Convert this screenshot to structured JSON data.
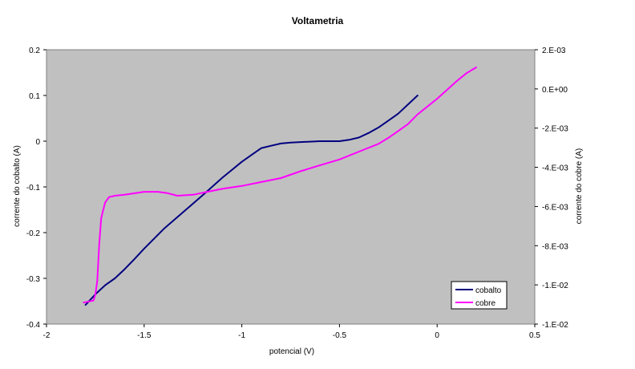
{
  "chart_data": {
    "type": "line",
    "title": "Voltametria",
    "xlabel": "potencial (V)",
    "ylabel_left": "corrente do cobalto (A)",
    "ylabel_right": "corrente do cobre (A)",
    "xlim": [
      -2,
      0.5
    ],
    "ylim_left": [
      -0.4,
      0.2
    ],
    "ylim_right": [
      -0.012,
      0.002
    ],
    "x_ticks": [
      "-2",
      "-1.5",
      "-1",
      "-0.5",
      "0",
      "0.5"
    ],
    "y_left_ticks": [
      "0.2",
      "0.1",
      "0",
      "-0.1",
      "-0.2",
      "-0.3",
      "-0.4"
    ],
    "y_right_ticks": [
      "2.E-03",
      "0.E+00",
      "-2.E-03",
      "-4.E-03",
      "-6.E-03",
      "-8.E-03",
      "-1.E-02",
      "-1.E-02"
    ],
    "plot_background": "#c0c0c0",
    "grid": false,
    "legend_position": "bottom-right",
    "series": [
      {
        "name": "cobalto",
        "axis": "left",
        "color": "#000080",
        "x": [
          -1.8,
          -1.75,
          -1.7,
          -1.65,
          -1.6,
          -1.55,
          -1.5,
          -1.4,
          -1.3,
          -1.2,
          -1.1,
          -1.0,
          -0.95,
          -0.9,
          -0.85,
          -0.8,
          -0.75,
          -0.7,
          -0.6,
          -0.5,
          -0.45,
          -0.4,
          -0.35,
          -0.3,
          -0.25,
          -0.2,
          -0.15,
          -0.1
        ],
        "y": [
          -0.358,
          -0.335,
          -0.315,
          -0.3,
          -0.28,
          -0.258,
          -0.235,
          -0.192,
          -0.155,
          -0.118,
          -0.08,
          -0.045,
          -0.03,
          -0.015,
          -0.01,
          -0.005,
          -0.003,
          -0.002,
          0.0,
          0.0,
          0.003,
          0.008,
          0.018,
          0.03,
          0.045,
          0.06,
          0.08,
          0.1
        ]
      },
      {
        "name": "cobre",
        "axis": "right",
        "color": "#ff00ff",
        "x": [
          -1.81,
          -1.76,
          -1.75,
          -1.74,
          -1.73,
          -1.72,
          -1.71,
          -1.7,
          -1.68,
          -1.65,
          -1.6,
          -1.5,
          -1.43,
          -1.38,
          -1.33,
          -1.25,
          -1.2,
          -1.1,
          -1.0,
          -0.9,
          -0.8,
          -0.7,
          -0.6,
          -0.5,
          -0.4,
          -0.3,
          -0.25,
          -0.2,
          -0.15,
          -0.1,
          0.0,
          0.1,
          0.15,
          0.2
        ],
        "y": [
          -0.0109,
          -0.0108,
          -0.0105,
          -0.0098,
          -0.0079,
          -0.0066,
          -0.0062,
          -0.0058,
          -0.00552,
          -0.00545,
          -0.0054,
          -0.00525,
          -0.00525,
          -0.00532,
          -0.00545,
          -0.0054,
          -0.0053,
          -0.0051,
          -0.00495,
          -0.00475,
          -0.00455,
          -0.0042,
          -0.0039,
          -0.0036,
          -0.0032,
          -0.0028,
          -0.0025,
          -0.00215,
          -0.0018,
          -0.0013,
          -0.0005,
          0.0004,
          0.0008,
          0.0011
        ]
      }
    ]
  }
}
